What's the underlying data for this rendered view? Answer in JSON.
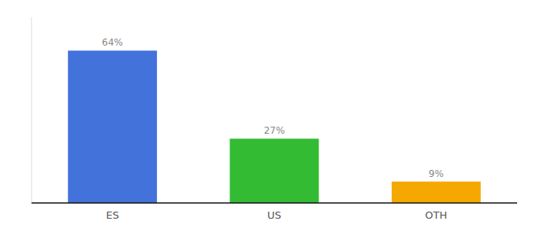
{
  "chart_data": {
    "type": "bar",
    "categories": [
      "ES",
      "US",
      "OTH"
    ],
    "values": [
      64,
      27,
      9
    ],
    "value_labels": [
      "64%",
      "27%",
      "9%"
    ],
    "colors": [
      "#4472db",
      "#33bb33",
      "#f5a800"
    ],
    "data_labels": true,
    "ylim": [
      0,
      78
    ],
    "tick_labels": "x",
    "grid": false
  }
}
